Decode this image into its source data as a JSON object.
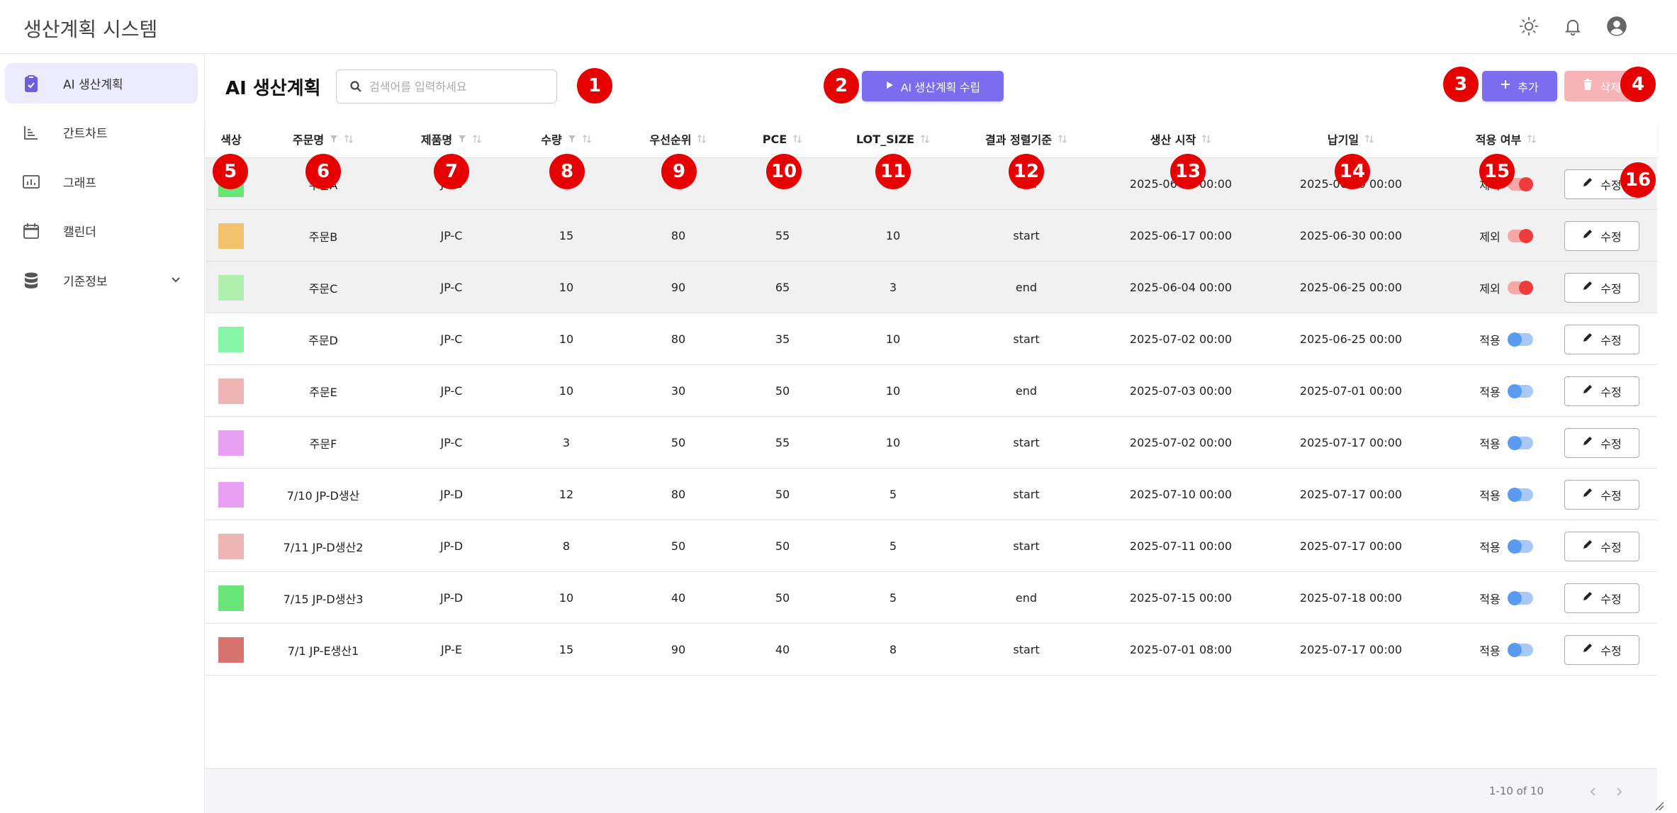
{
  "app": {
    "title": "생산계획 시스템"
  },
  "topbar_icons": [
    "sun-icon",
    "bell-icon",
    "user-avatar-icon"
  ],
  "sidebar": {
    "items": [
      {
        "label": "AI 생산계획",
        "icon": "clipboard-check-icon",
        "active": true
      },
      {
        "label": "간트차트",
        "icon": "chart-axis-icon",
        "active": false
      },
      {
        "label": "그래프",
        "icon": "bar-chart-icon",
        "active": false
      },
      {
        "label": "캘린더",
        "icon": "calendar-icon",
        "active": false
      },
      {
        "label": "기준정보",
        "icon": "database-icon",
        "active": false,
        "expandable": true
      }
    ]
  },
  "toolbar": {
    "page_title": "AI 생산계획",
    "search_placeholder": "검색어를 입력하세요",
    "ai_button_label": "AI 생산계획 수립",
    "add_button_label": "추가",
    "delete_button_label": "삭제"
  },
  "table": {
    "headers": [
      "색상",
      "주문명",
      "제품명",
      "수량",
      "우선순위",
      "PCE",
      "LOT_SIZE",
      "결과 정렬기준",
      "생산 시작",
      "납기일",
      "적용 여부"
    ],
    "edit_label": "수정",
    "rows": [
      {
        "color": "#6ae57a",
        "order": "주문A",
        "product": "JP-C",
        "qty": "10",
        "priority": "20",
        "pce": "50",
        "lot": "10",
        "sort": "end",
        "start": "2025-06-23 00:00",
        "due": "2025-06-30 00:00",
        "status": "제외",
        "enabled": false
      },
      {
        "color": "#f2c26d",
        "order": "주문B",
        "product": "JP-C",
        "qty": "15",
        "priority": "80",
        "pce": "55",
        "lot": "10",
        "sort": "start",
        "start": "2025-06-17 00:00",
        "due": "2025-06-30 00:00",
        "status": "제외",
        "enabled": false
      },
      {
        "color": "#aef2ae",
        "order": "주문C",
        "product": "JP-C",
        "qty": "10",
        "priority": "90",
        "pce": "65",
        "lot": "3",
        "sort": "end",
        "start": "2025-06-04 00:00",
        "due": "2025-06-25 00:00",
        "status": "제외",
        "enabled": false
      },
      {
        "color": "#86f6a6",
        "order": "주문D",
        "product": "JP-C",
        "qty": "10",
        "priority": "80",
        "pce": "35",
        "lot": "10",
        "sort": "start",
        "start": "2025-07-02 00:00",
        "due": "2025-06-25 00:00",
        "status": "적용",
        "enabled": true
      },
      {
        "color": "#efb4b4",
        "order": "주문E",
        "product": "JP-C",
        "qty": "10",
        "priority": "30",
        "pce": "50",
        "lot": "10",
        "sort": "end",
        "start": "2025-07-03 00:00",
        "due": "2025-07-01 00:00",
        "status": "적용",
        "enabled": true
      },
      {
        "color": "#e8a0f4",
        "order": "주문F",
        "product": "JP-C",
        "qty": "3",
        "priority": "50",
        "pce": "55",
        "lot": "10",
        "sort": "start",
        "start": "2025-07-02 00:00",
        "due": "2025-07-17 00:00",
        "status": "적용",
        "enabled": true
      },
      {
        "color": "#e8a0f4",
        "order": "7/10 JP-D생산",
        "product": "JP-D",
        "qty": "12",
        "priority": "80",
        "pce": "50",
        "lot": "5",
        "sort": "start",
        "start": "2025-07-10 00:00",
        "due": "2025-07-17 00:00",
        "status": "적용",
        "enabled": true
      },
      {
        "color": "#efb4b4",
        "order": "7/11 JP-D생산2",
        "product": "JP-D",
        "qty": "8",
        "priority": "50",
        "pce": "50",
        "lot": "5",
        "sort": "start",
        "start": "2025-07-11 00:00",
        "due": "2025-07-17 00:00",
        "status": "적용",
        "enabled": true
      },
      {
        "color": "#6ae57a",
        "order": "7/15 JP-D생산3",
        "product": "JP-D",
        "qty": "10",
        "priority": "40",
        "pce": "50",
        "lot": "5",
        "sort": "end",
        "start": "2025-07-15 00:00",
        "due": "2025-07-18 00:00",
        "status": "적용",
        "enabled": true
      },
      {
        "color": "#d9736f",
        "order": "7/1 JP-E생산1",
        "product": "JP-E",
        "qty": "15",
        "priority": "90",
        "pce": "40",
        "lot": "8",
        "sort": "start",
        "start": "2025-07-01 08:00",
        "due": "2025-07-17 00:00",
        "status": "적용",
        "enabled": true
      }
    ]
  },
  "pagination": {
    "text": "1-10 of 10"
  },
  "markers": [
    "1",
    "2",
    "3",
    "4",
    "5",
    "6",
    "7",
    "8",
    "9",
    "10",
    "11",
    "12",
    "13",
    "14",
    "15",
    "16"
  ],
  "colors": {
    "accent": "#7b6cf0",
    "delete": "#f7b3b6",
    "marker": "#e60000"
  }
}
